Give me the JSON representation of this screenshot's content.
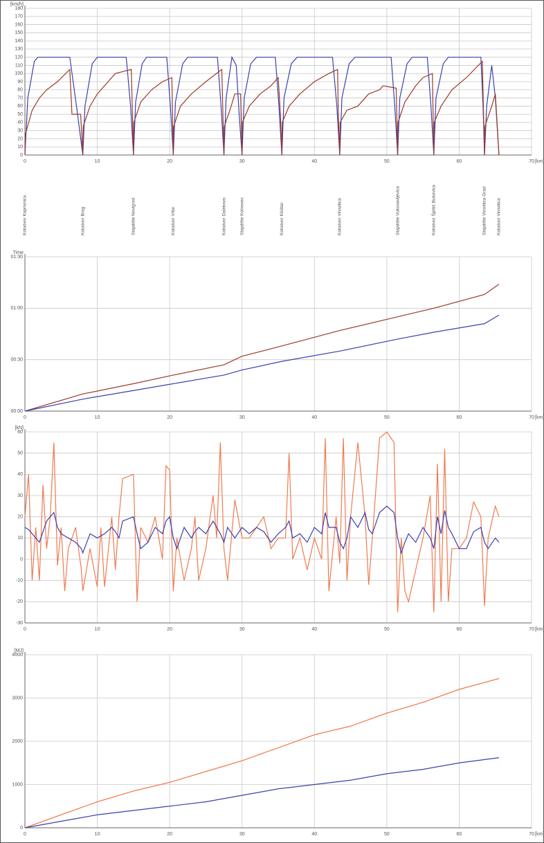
{
  "chart_data": [
    {
      "type": "line",
      "ylabel": "[km/h]",
      "xlabel": "[km]",
      "xlim": [
        0,
        70
      ],
      "xticks": [
        0,
        10,
        20,
        30,
        40,
        50,
        60,
        70
      ],
      "ylim": [
        0,
        180
      ],
      "yticks": [
        0,
        10,
        20,
        30,
        40,
        50,
        60,
        70,
        80,
        90,
        100,
        110,
        120,
        130,
        140,
        150,
        160,
        170,
        180
      ],
      "grid": true,
      "series": [
        {
          "color": "#3b3fae",
          "x": [
            0,
            0.4,
            1.3,
            1.8,
            6.2,
            7.2,
            8,
            8.3,
            9.3,
            10,
            14,
            14.6,
            15,
            15.3,
            16.2,
            16.8,
            19.6,
            20.1,
            20.5,
            20.8,
            21.8,
            22.5,
            26.6,
            27.1,
            27.5,
            27.8,
            28.6,
            29.2,
            29.6,
            30,
            30.3,
            31.2,
            32,
            34.6,
            35.1,
            35.5,
            35.8,
            36.8,
            37.6,
            42.5,
            43.1,
            43.5,
            43.8,
            44.8,
            45.6,
            50.6,
            51.1,
            51.5,
            51.8,
            52.8,
            53.5,
            55.6,
            56.1,
            56.5,
            56.8,
            57.8,
            58.5,
            63,
            63.3,
            63.5,
            63.8,
            64.5,
            65,
            65.5
          ],
          "values": [
            0,
            70,
            115,
            120,
            120,
            55,
            0,
            60,
            112,
            120,
            120,
            60,
            0,
            65,
            112,
            120,
            120,
            60,
            0,
            65,
            112,
            120,
            120,
            60,
            0,
            70,
            120,
            110,
            50,
            0,
            70,
            112,
            120,
            120,
            60,
            0,
            70,
            112,
            120,
            120,
            60,
            0,
            70,
            112,
            120,
            120,
            60,
            0,
            70,
            112,
            120,
            120,
            60,
            0,
            70,
            112,
            120,
            120,
            60,
            0,
            60,
            110,
            70,
            0
          ]
        },
        {
          "color": "#9b3a28",
          "x": [
            0,
            0.05,
            1,
            2,
            3,
            4.5,
            6.2,
            6.5,
            7.7,
            8,
            8.05,
            9,
            10,
            11,
            12.5,
            14.7,
            15,
            15.05,
            16,
            17.5,
            19,
            20.3,
            20.5,
            20.55,
            21.5,
            23,
            25,
            27.2,
            27.5,
            27.55,
            28.5,
            29,
            29.8,
            30,
            30.05,
            31,
            32.5,
            34,
            35,
            35.3,
            35.5,
            35.55,
            36.5,
            38,
            40,
            42,
            43.2,
            43.3,
            43.5,
            43.55,
            44.5,
            46,
            47.5,
            49,
            49.5,
            51.3,
            51.5,
            51.55,
            52.5,
            54,
            55,
            56.3,
            56.5,
            56.55,
            57.5,
            59,
            61,
            63.2,
            63.5,
            63.55,
            64.5,
            65,
            65.5
          ],
          "values": [
            0,
            25,
            55,
            70,
            80,
            90,
            105,
            50,
            50,
            0,
            35,
            60,
            75,
            85,
            100,
            105,
            0,
            40,
            65,
            80,
            90,
            95,
            0,
            35,
            60,
            75,
            90,
            105,
            0,
            35,
            60,
            75,
            75,
            0,
            40,
            60,
            75,
            85,
            95,
            50,
            0,
            40,
            60,
            75,
            90,
            100,
            105,
            50,
            0,
            40,
            55,
            60,
            75,
            80,
            85,
            82,
            0,
            40,
            65,
            85,
            95,
            100,
            0,
            40,
            60,
            80,
            95,
            115,
            0,
            35,
            60,
            75,
            0
          ]
        }
      ],
      "annotations": [
        {
          "text": "Kolodvor Koprivnica",
          "x": 0
        },
        {
          "text": "Kolodvor Brag",
          "x": 8
        },
        {
          "text": "Stajalište Novigrad",
          "x": 15
        },
        {
          "text": "Kolodvor Vrbe",
          "x": 20.5
        },
        {
          "text": "Kolodvor Dalekovo",
          "x": 27.5
        },
        {
          "text": "Stajalište Kolnovec",
          "x": 30
        },
        {
          "text": "Kolodvor Kloštar",
          "x": 35.5
        },
        {
          "text": "Kolodvor Virovitica",
          "x": 43.5
        },
        {
          "text": "Stajalište Vukosavljevica",
          "x": 51.5
        },
        {
          "text": "Kolodvor Špišić Bukovica",
          "x": 56.5
        },
        {
          "text": "Stajalište Virovitica Grad",
          "x": 63.5
        },
        {
          "text": "Kolodvor Virovitica",
          "x": 65.5
        }
      ]
    },
    {
      "type": "line",
      "ylabel": "Time",
      "xlabel": "[km]",
      "xlim": [
        0,
        70
      ],
      "xticks": [
        0,
        10,
        20,
        30,
        40,
        50,
        60,
        70
      ],
      "ylim": [
        0,
        90
      ],
      "yticks": [
        {
          "value": 0,
          "label": "00:00"
        },
        {
          "value": 30,
          "label": "00:30"
        },
        {
          "value": 60,
          "label": "01:00"
        },
        {
          "value": 90,
          "label": "01:30"
        }
      ],
      "grid": true,
      "x": [
        0,
        8,
        15,
        20.5,
        27.5,
        30,
        35.5,
        43.5,
        51.5,
        56.5,
        63.5,
        65.5
      ],
      "series": [
        {
          "color": "#9b3a28",
          "values": [
            0,
            10,
            16,
            21,
            27,
            32,
            38,
            47,
            55,
            60,
            68,
            74
          ]
        },
        {
          "color": "#3b3fae",
          "values": [
            0,
            7,
            12,
            16,
            21,
            24,
            29,
            35,
            42,
            46,
            51,
            56
          ]
        }
      ]
    },
    {
      "type": "line",
      "ylabel": "[kN]",
      "xlabel": "[km]",
      "xlim": [
        0,
        70
      ],
      "xticks": [
        0,
        10,
        20,
        30,
        40,
        50,
        60,
        70
      ],
      "ylim": [
        -30,
        60
      ],
      "yticks": [
        -30,
        -20,
        -10,
        0,
        10,
        20,
        30,
        40,
        50,
        60
      ],
      "grid": true,
      "x": [
        0,
        0.5,
        1,
        1.5,
        2,
        2.5,
        3,
        3.5,
        4,
        4.5,
        5,
        5.5,
        6,
        7,
        7.8,
        8,
        9,
        10,
        10.5,
        11,
        12,
        12.5,
        13,
        13.5,
        15,
        15.5,
        16,
        17,
        18,
        19,
        19.5,
        20,
        20.5,
        21,
        22,
        23,
        23.5,
        24,
        25,
        26,
        26.5,
        27,
        27.5,
        28,
        29,
        30,
        31,
        32,
        33,
        34,
        35,
        36,
        36.5,
        37,
        38,
        39,
        40,
        41,
        41.5,
        42,
        43,
        43.5,
        44,
        44.5,
        45,
        46,
        47,
        47.5,
        48,
        49,
        50,
        51,
        51.5,
        52,
        52.5,
        53,
        54,
        55,
        56,
        56.5,
        57,
        57.5,
        58,
        58.5,
        59,
        60,
        61,
        62,
        63,
        63.5,
        64,
        65,
        65.5
      ],
      "series": [
        {
          "color": "#f07a4e",
          "values": [
            20,
            40,
            -10,
            15,
            -10,
            35,
            5,
            20,
            55,
            -3,
            15,
            -15,
            5,
            15,
            -5,
            -15,
            5,
            -13,
            15,
            -13,
            20,
            -5,
            20,
            38,
            40,
            -20,
            15,
            8,
            20,
            0,
            44,
            42,
            -15,
            10,
            -10,
            5,
            20,
            -10,
            5,
            30,
            10,
            55,
            5,
            -10,
            28,
            10,
            10,
            15,
            20,
            5,
            10,
            10,
            50,
            0,
            10,
            -5,
            10,
            0,
            57,
            -15,
            20,
            -2,
            57,
            -10,
            20,
            55,
            20,
            -12,
            10,
            57,
            60,
            55,
            -25,
            10,
            -15,
            -20,
            -5,
            10,
            30,
            -25,
            45,
            -20,
            52,
            -20,
            5,
            5,
            10,
            27,
            20,
            -22,
            10,
            25,
            20
          ]
        },
        {
          "color": "#3b3fae",
          "values": [
            15,
            14,
            12,
            10,
            8,
            13,
            18,
            20,
            22,
            15,
            12,
            11,
            10,
            8,
            5,
            3,
            12,
            10,
            11,
            12,
            15,
            13,
            10,
            18,
            20,
            12,
            5,
            8,
            15,
            12,
            18,
            20,
            10,
            5,
            15,
            10,
            13,
            15,
            12,
            18,
            15,
            12,
            8,
            15,
            10,
            15,
            12,
            15,
            13,
            8,
            12,
            15,
            18,
            10,
            12,
            8,
            15,
            12,
            22,
            15,
            15,
            8,
            5,
            10,
            20,
            15,
            22,
            14,
            12,
            22,
            25,
            22,
            10,
            3,
            8,
            12,
            8,
            15,
            10,
            5,
            20,
            12,
            23,
            15,
            12,
            5,
            5,
            13,
            15,
            8,
            5,
            10,
            8
          ]
        }
      ]
    },
    {
      "type": "line",
      "ylabel": "[MJ]",
      "xlabel": "[km]",
      "xlim": [
        0,
        70
      ],
      "xticks": [
        0,
        10,
        20,
        30,
        40,
        50,
        60,
        70
      ],
      "ylim": [
        0,
        4000
      ],
      "yticks": [
        0,
        1000,
        2000,
        3000,
        4000
      ],
      "grid": true,
      "x": [
        0,
        5,
        10,
        15,
        20,
        25,
        30,
        35,
        40,
        45,
        50,
        55,
        60,
        65.5
      ],
      "series": [
        {
          "color": "#f07a4e",
          "values": [
            0,
            300,
            600,
            850,
            1050,
            1300,
            1550,
            1850,
            2150,
            2350,
            2650,
            2900,
            3200,
            3450
          ]
        },
        {
          "color": "#3b3fae",
          "values": [
            0,
            150,
            300,
            400,
            500,
            600,
            750,
            900,
            1000,
            1100,
            1250,
            1350,
            1500,
            1620
          ]
        }
      ]
    }
  ]
}
